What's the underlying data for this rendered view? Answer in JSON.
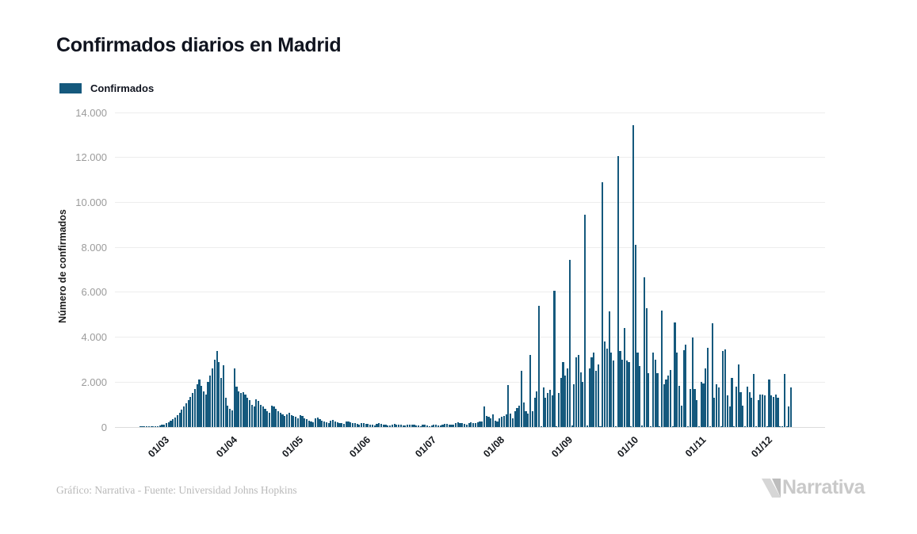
{
  "page": {
    "background": "#ffffff"
  },
  "header": {
    "title": "Confirmados diarios en Madrid"
  },
  "legend": {
    "items": [
      {
        "label": "Confirmados",
        "color": "#15597D"
      }
    ]
  },
  "footer": {
    "credit": "Gráfico: Narrativa - Fuente: Universidad Johns Hopkins",
    "brand": "Narrativa"
  },
  "chart_data": {
    "type": "bar",
    "title": "Confirmados diarios en Madrid",
    "xlabel": "",
    "ylabel": "Número de confirmados",
    "ylim": [
      0,
      14000
    ],
    "grid": true,
    "legend_position": "top-left",
    "bar_color": "#15597D",
    "y_ticks": [
      {
        "value": 0,
        "label": "0"
      },
      {
        "value": 2000,
        "label": "2.000"
      },
      {
        "value": 4000,
        "label": "4.000"
      },
      {
        "value": 6000,
        "label": "6.000"
      },
      {
        "value": 8000,
        "label": "8.000"
      },
      {
        "value": 10000,
        "label": "10.000"
      },
      {
        "value": 12000,
        "label": "12.000"
      },
      {
        "value": 14000,
        "label": "14.000"
      }
    ],
    "x_ticks": [
      {
        "day": 20,
        "label": "01/03"
      },
      {
        "day": 51,
        "label": "01/04"
      },
      {
        "day": 81,
        "label": "01/05"
      },
      {
        "day": 112,
        "label": "01/06"
      },
      {
        "day": 142,
        "label": "01/07"
      },
      {
        "day": 173,
        "label": "01/08"
      },
      {
        "day": 204,
        "label": "01/09"
      },
      {
        "day": 234,
        "label": "01/10"
      },
      {
        "day": 265,
        "label": "01/11"
      },
      {
        "day": 295,
        "label": "01/12"
      }
    ],
    "axis_total_days": 324,
    "series": [
      {
        "name": "Confirmados",
        "color": "#15597D",
        "dates_start": "2020-02-21",
        "first_day_offset": 11,
        "daily_values": [
          2,
          3,
          5,
          8,
          12,
          18,
          25,
          35,
          50,
          70,
          90,
          120,
          160,
          210,
          270,
          340,
          420,
          520,
          640,
          760,
          900,
          1050,
          1200,
          1350,
          1500,
          1700,
          1900,
          2100,
          1850,
          1600,
          1450,
          2000,
          2300,
          2600,
          3000,
          3400,
          2900,
          2200,
          2750,
          1300,
          950,
          800,
          750,
          2600,
          1800,
          1600,
          1500,
          1550,
          1450,
          1300,
          1200,
          1000,
          900,
          1250,
          1150,
          1000,
          900,
          800,
          700,
          650,
          950,
          900,
          800,
          700,
          620,
          550,
          500,
          580,
          620,
          520,
          500,
          450,
          380,
          520,
          480,
          400,
          350,
          300,
          260,
          220,
          380,
          420,
          340,
          280,
          240,
          200,
          180,
          280,
          320,
          260,
          220,
          190,
          160,
          140,
          230,
          260,
          210,
          180,
          160,
          130,
          110,
          160,
          190,
          150,
          130,
          110,
          90,
          80,
          130,
          160,
          140,
          120,
          100,
          80,
          70,
          110,
          140,
          120,
          100,
          90,
          70,
          60,
          100,
          120,
          110,
          90,
          80,
          60,
          50,
          90,
          110,
          60,
          50,
          80,
          100,
          90,
          70,
          60,
          110,
          150,
          130,
          120,
          100,
          90,
          160,
          200,
          180,
          160,
          140,
          120,
          180,
          200,
          190,
          170,
          220,
          260,
          240,
          930,
          500,
          450,
          380,
          550,
          300,
          250,
          400,
          450,
          500,
          550,
          1870,
          600,
          400,
          700,
          850,
          950,
          2500,
          1100,
          700,
          600,
          3200,
          700,
          1300,
          1600,
          5400,
          50,
          1750,
          1300,
          1500,
          1650,
          1400,
          6050,
          40,
          1500,
          2200,
          2900,
          2300,
          2600,
          7450,
          80,
          1900,
          3100,
          3200,
          2450,
          2000,
          9450,
          60,
          2600,
          3100,
          3300,
          2500,
          2800,
          50,
          10900,
          3800,
          3500,
          5150,
          3300,
          2950,
          40,
          12050,
          3400,
          3000,
          4400,
          2950,
          2900,
          50,
          13450,
          8100,
          3300,
          2700,
          60,
          6650,
          5300,
          2400,
          40,
          3300,
          3000,
          2400,
          50,
          5200,
          1900,
          2100,
          2300,
          2550,
          40,
          4660,
          3300,
          1850,
          950,
          3430,
          3680,
          30,
          1700,
          3970,
          1700,
          1200,
          40,
          2000,
          1950,
          2600,
          3540,
          30,
          4630,
          1300,
          1900,
          1750,
          40,
          3400,
          3450,
          1400,
          900,
          2200,
          30,
          1800,
          2790,
          1550,
          950,
          40,
          1800,
          1550,
          1300,
          2370,
          30,
          1200,
          1450,
          1450,
          1400,
          40,
          2100,
          1400,
          1350,
          1450,
          1300,
          50,
          30,
          2370,
          40,
          900,
          1750
        ]
      }
    ]
  }
}
